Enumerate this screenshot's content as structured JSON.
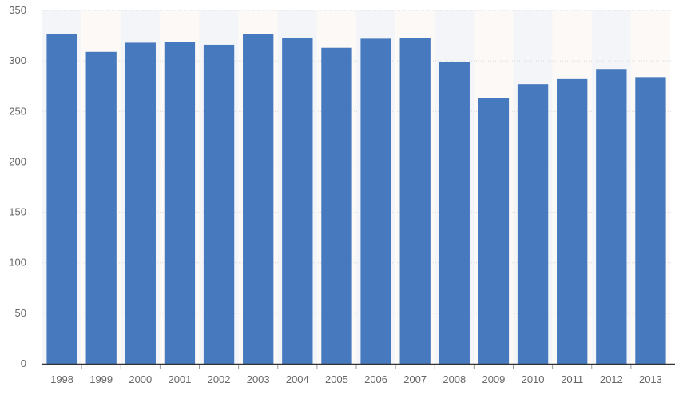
{
  "chart_data": {
    "type": "bar",
    "categories": [
      "1998",
      "1999",
      "2000",
      "2001",
      "2002",
      "2003",
      "2004",
      "2005",
      "2006",
      "2007",
      "2008",
      "2009",
      "2010",
      "2011",
      "2012",
      "2013"
    ],
    "values": [
      327,
      309,
      318,
      319,
      316,
      327,
      323,
      313,
      322,
      323,
      299,
      263,
      277,
      282,
      292,
      284
    ],
    "title": "",
    "xlabel": "",
    "ylabel": "",
    "ylim": [
      0,
      350
    ],
    "yticks": [
      "0",
      "50",
      "100",
      "150",
      "200",
      "250",
      "300",
      "350"
    ],
    "grid": true,
    "legend": "none",
    "colors": {
      "bar": "#4679be",
      "band_light": "#f3f5f9",
      "band_warm": "#fdf9f6",
      "gridline": "#d6d9de",
      "axis": "#333333"
    }
  }
}
